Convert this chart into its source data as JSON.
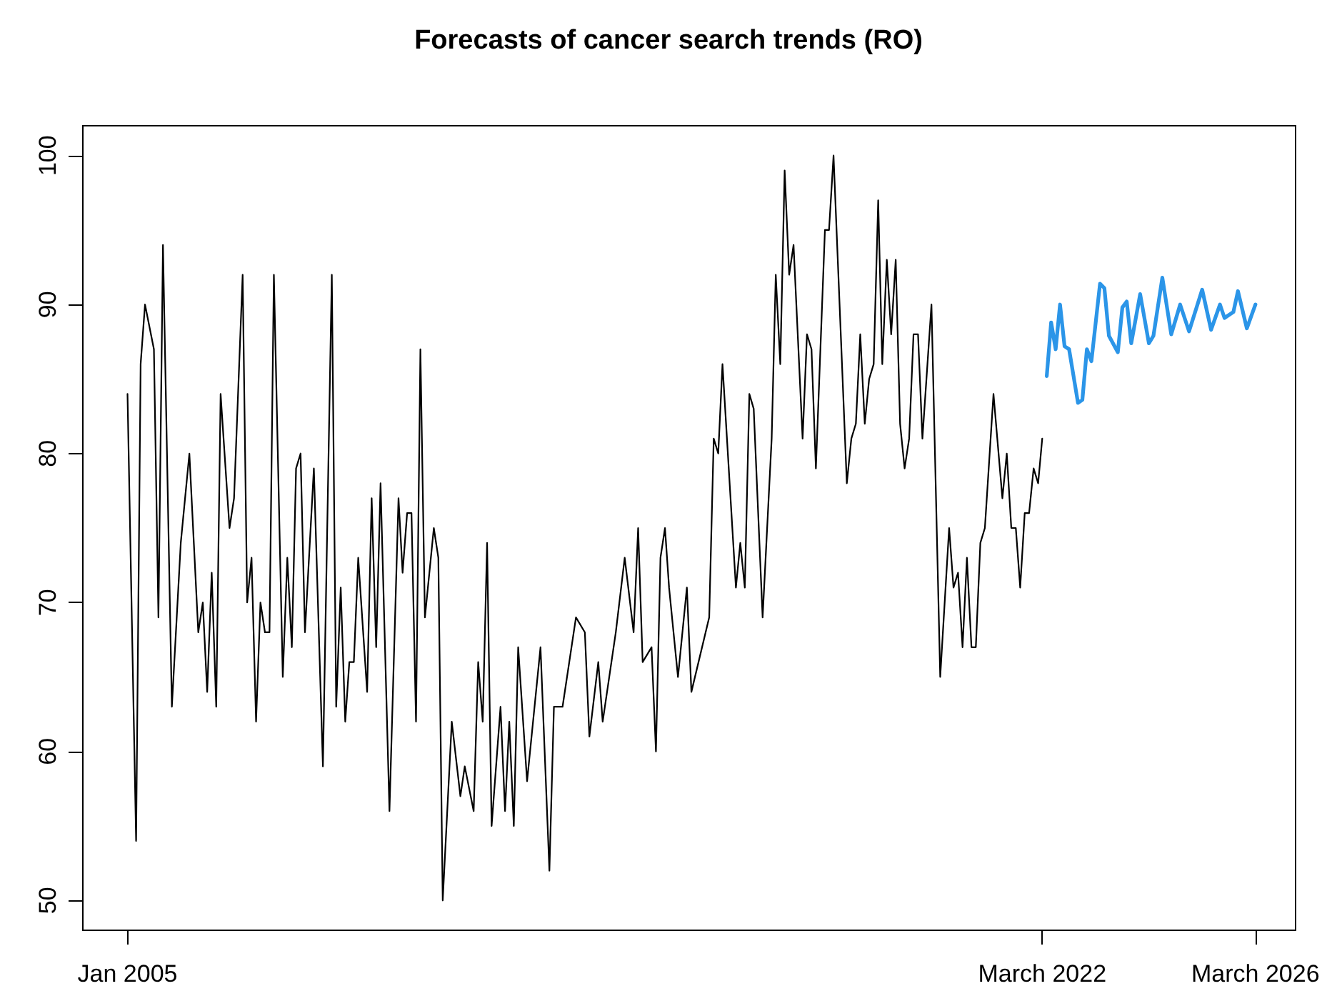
{
  "chart_data": {
    "type": "line",
    "title": "Forecasts of cancer search trends (RO)",
    "marker": "none",
    "line_style": "solid",
    "grid": false,
    "xlim": [
      "2004-03",
      "2026-12"
    ],
    "xticks": [
      {
        "value": "2005-01",
        "label": "Jan 2005"
      },
      {
        "value": "2022-03",
        "label": "March 2022"
      },
      {
        "value": "2026-03",
        "label": "March 2026"
      }
    ],
    "ylim": [
      48,
      102
    ],
    "yticks": [
      50,
      60,
      70,
      80,
      90,
      100
    ],
    "series": [
      {
        "color": "#000000",
        "x": [
          "2005-01",
          "2005-03",
          "2005-04",
          "2005-05",
          "2005-07",
          "2005-08",
          "2005-09",
          "2005-11",
          "2006-01",
          "2006-03",
          "2006-05",
          "2006-06",
          "2006-07",
          "2006-08",
          "2006-09",
          "2006-10",
          "2006-12",
          "2007-01",
          "2007-03",
          "2007-04",
          "2007-05",
          "2007-06",
          "2007-07",
          "2007-08",
          "2007-09",
          "2007-10",
          "2007-12",
          "2008-01",
          "2008-02",
          "2008-03",
          "2008-04",
          "2008-05",
          "2008-07",
          "2008-09",
          "2008-11",
          "2008-12",
          "2009-01",
          "2009-02",
          "2009-03",
          "2009-04",
          "2009-05",
          "2009-07",
          "2009-08",
          "2009-09",
          "2009-10",
          "2009-12",
          "2010-02",
          "2010-03",
          "2010-04",
          "2010-05",
          "2010-06",
          "2010-07",
          "2010-08",
          "2010-10",
          "2010-11",
          "2010-12",
          "2011-02",
          "2011-04",
          "2011-05",
          "2011-07",
          "2011-08",
          "2011-09",
          "2011-10",
          "2011-11",
          "2012-01",
          "2012-02",
          "2012-03",
          "2012-04",
          "2012-05",
          "2012-07",
          "2012-10",
          "2012-12",
          "2013-01",
          "2013-03",
          "2013-06",
          "2013-08",
          "2013-09",
          "2013-11",
          "2013-12",
          "2014-03",
          "2014-05",
          "2014-07",
          "2014-08",
          "2014-09",
          "2014-11",
          "2014-12",
          "2015-01",
          "2015-02",
          "2015-03",
          "2015-05",
          "2015-07",
          "2015-08",
          "2015-12",
          "2016-01",
          "2016-02",
          "2016-03",
          "2016-06",
          "2016-07",
          "2016-08",
          "2016-09",
          "2016-10",
          "2016-12",
          "2017-02",
          "2017-03",
          "2017-04",
          "2017-05",
          "2017-06",
          "2017-07",
          "2017-09",
          "2017-10",
          "2017-11",
          "2017-12",
          "2018-02",
          "2018-03",
          "2018-04",
          "2018-07",
          "2018-08",
          "2018-09",
          "2018-10",
          "2018-11",
          "2018-12",
          "2019-01",
          "2019-02",
          "2019-03",
          "2019-04",
          "2019-05",
          "2019-06",
          "2019-07",
          "2019-08",
          "2019-09",
          "2019-10",
          "2019-11",
          "2019-12",
          "2020-02",
          "2020-04",
          "2020-06",
          "2020-07",
          "2020-08",
          "2020-09",
          "2020-10",
          "2020-11",
          "2020-12",
          "2021-01",
          "2021-02",
          "2021-04",
          "2021-06",
          "2021-07",
          "2021-08",
          "2021-09",
          "2021-10",
          "2021-11",
          "2021-12",
          "2022-01",
          "2022-02",
          "2022-03"
        ],
        "values": [
          84,
          54,
          86,
          90,
          87,
          69,
          94,
          63,
          74,
          80,
          68,
          70,
          64,
          72,
          63,
          84,
          75,
          77,
          92,
          70,
          73,
          62,
          70,
          68,
          68,
          92,
          65,
          73,
          67,
          79,
          80,
          68,
          79,
          59,
          92,
          63,
          71,
          62,
          66,
          66,
          73,
          64,
          77,
          67,
          78,
          56,
          77,
          72,
          76,
          76,
          62,
          87,
          69,
          75,
          73,
          50,
          62,
          57,
          59,
          56,
          66,
          62,
          74,
          55,
          63,
          56,
          62,
          55,
          67,
          58,
          67,
          52,
          63,
          63,
          69,
          68,
          61,
          66,
          62,
          68,
          73,
          68,
          75,
          66,
          67,
          60,
          73,
          75,
          71,
          65,
          71,
          64,
          69,
          81,
          80,
          86,
          71,
          74,
          71,
          84,
          83,
          69,
          81,
          92,
          86,
          99,
          92,
          94,
          81,
          88,
          87,
          79,
          95,
          95,
          100,
          78,
          81,
          82,
          88,
          82,
          85,
          86,
          97,
          86,
          93,
          88,
          93,
          82,
          79,
          81,
          88,
          88,
          81,
          90,
          65,
          75,
          71,
          72,
          67,
          73,
          67,
          67,
          74,
          75,
          84,
          77,
          80,
          75,
          75,
          71,
          76,
          76,
          79,
          78,
          81
        ]
      },
      {
        "color": "#2b95e8",
        "x": [
          "2022-04",
          "2022-05",
          "2022-06",
          "2022-07",
          "2022-08",
          "2022-09",
          "2022-11",
          "2022-12",
          "2023-01",
          "2023-02",
          "2023-04",
          "2023-05",
          "2023-06",
          "2023-08",
          "2023-09",
          "2023-10",
          "2023-11",
          "2024-01",
          "2024-03",
          "2024-04",
          "2024-06",
          "2024-08",
          "2024-10",
          "2024-12",
          "2025-03",
          "2025-05",
          "2025-07",
          "2025-08",
          "2025-10",
          "2025-11",
          "2026-01",
          "2026-03"
        ],
        "values": [
          85.2,
          88.8,
          87,
          90,
          87.2,
          87,
          83.4,
          83.6,
          87,
          86.2,
          91.4,
          91.1,
          87.9,
          86.8,
          89.8,
          90.2,
          87.4,
          90.7,
          87.4,
          87.9,
          91.8,
          88,
          90,
          88.2,
          91,
          88.3,
          90,
          89.1,
          89.5,
          90.9,
          88.4,
          90
        ]
      }
    ]
  }
}
